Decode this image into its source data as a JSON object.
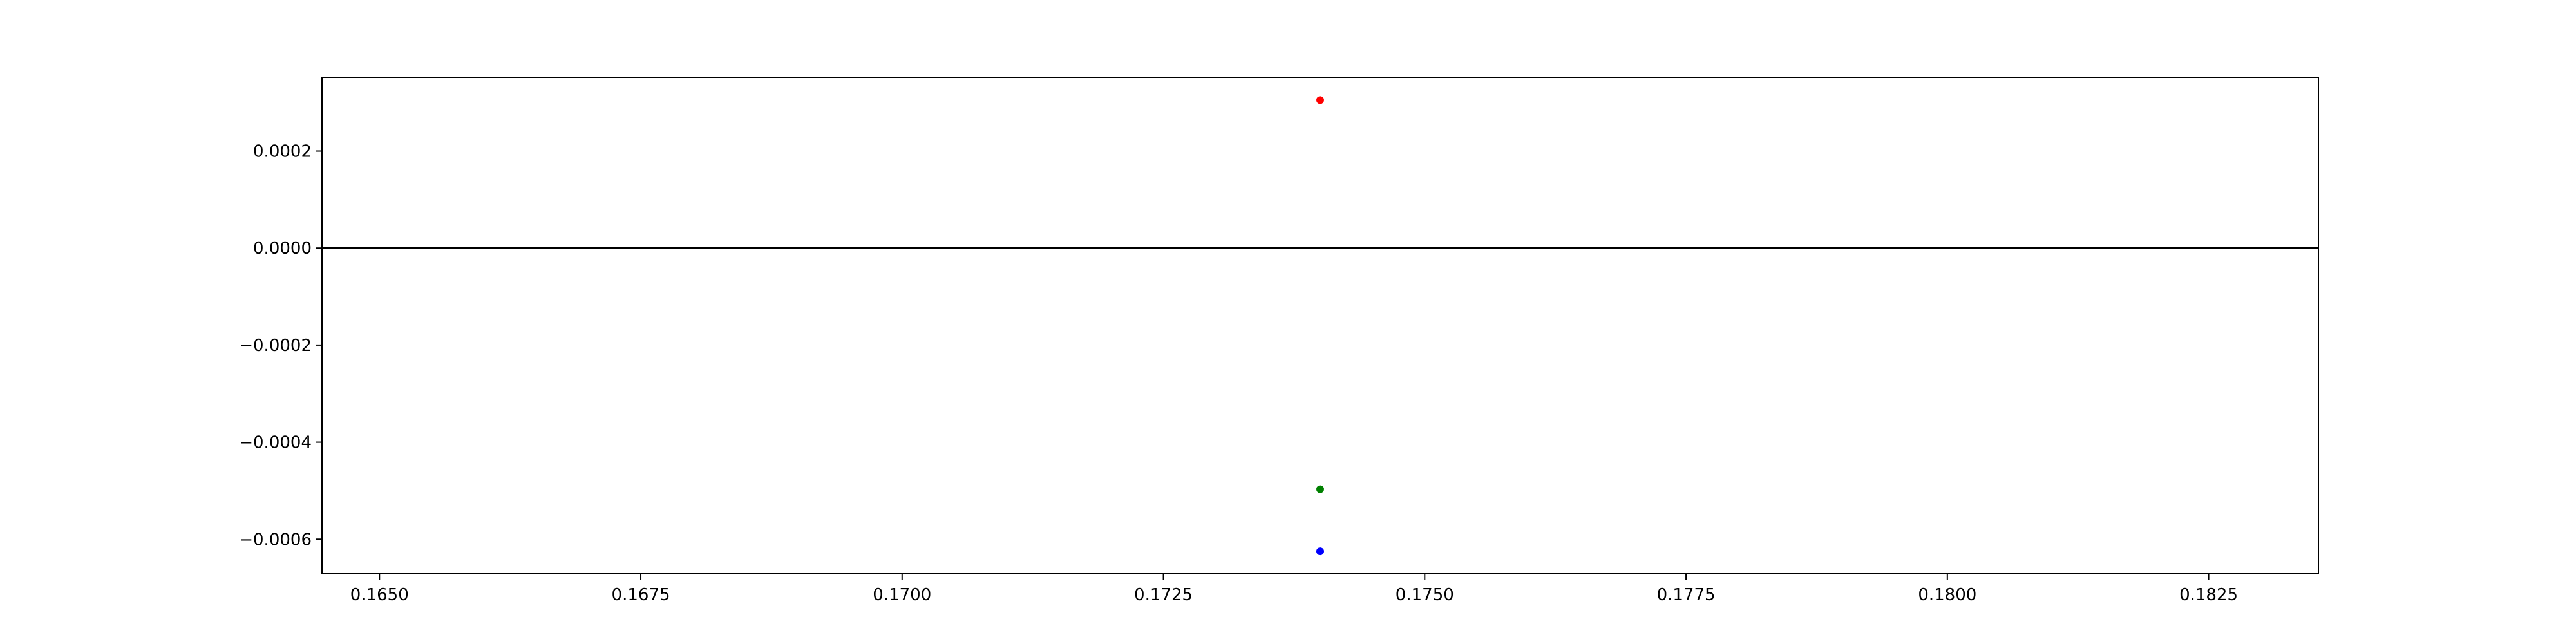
{
  "chart_data": {
    "type": "scatter",
    "title": "",
    "xlabel": "",
    "ylabel": "",
    "xlim": [
      0.16445,
      0.18355
    ],
    "ylim": [
      -0.00067,
      0.000352
    ],
    "xticks": [
      0.165,
      0.1675,
      0.17,
      0.1725,
      0.175,
      0.1775,
      0.18,
      0.1825
    ],
    "xtick_labels": [
      "0.1650",
      "0.1675",
      "0.1700",
      "0.1725",
      "0.1750",
      "0.1775",
      "0.1800",
      "0.1825"
    ],
    "yticks": [
      0.0002,
      0.0,
      -0.0002,
      -0.0004,
      -0.0006
    ],
    "ytick_labels": [
      "0.0002",
      "0.0000",
      "−0.0002",
      "−0.0004",
      "−0.0006"
    ],
    "hline": 0.0,
    "grid": false,
    "series": [
      {
        "color": "#ff0000",
        "points": [
          [
            0.174,
            0.000305
          ]
        ]
      },
      {
        "color": "#008000",
        "points": [
          [
            0.174,
            -0.000497
          ]
        ]
      },
      {
        "color": "#0000ff",
        "points": [
          [
            0.174,
            -0.000625
          ]
        ]
      }
    ],
    "hline_color": "#000000",
    "frame_color": "#000000"
  }
}
